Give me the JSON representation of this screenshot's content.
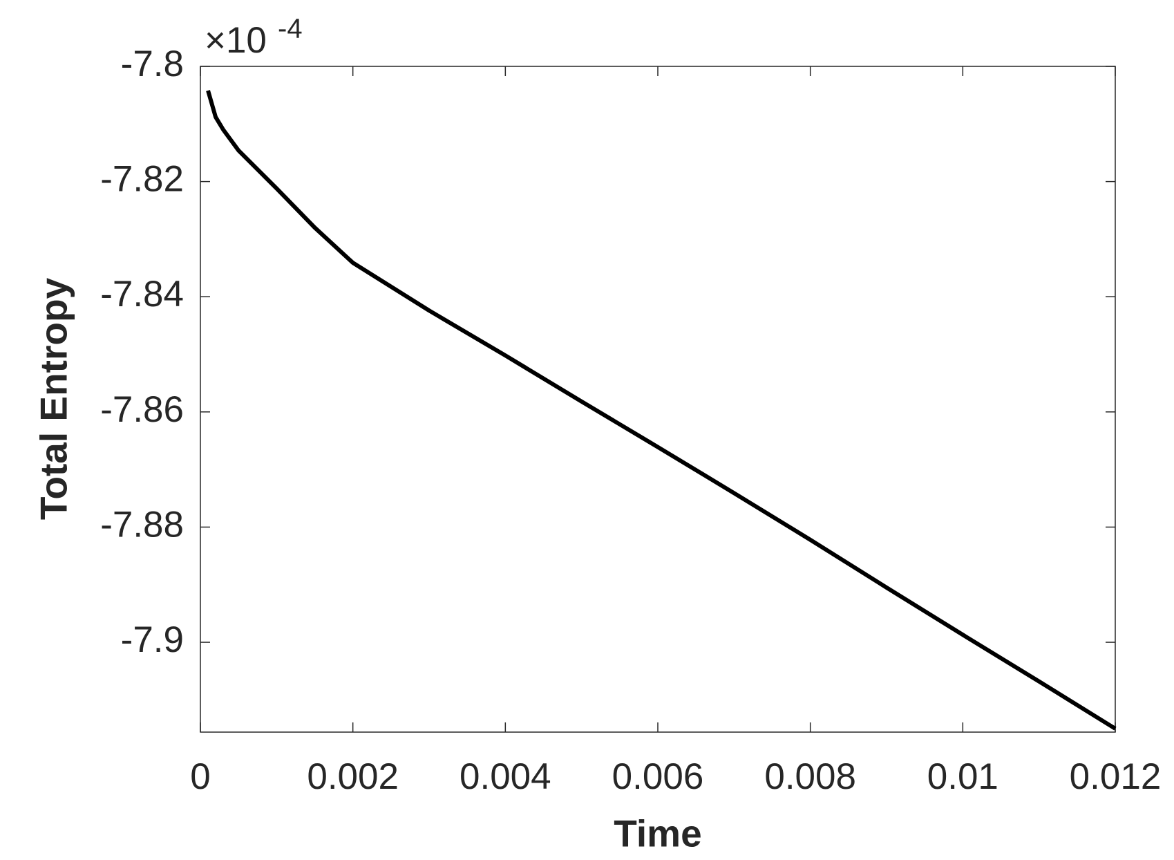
{
  "chart_data": {
    "type": "line",
    "xlabel": "Time",
    "ylabel": "Total Entropy",
    "y_multiplier": "×10",
    "y_multiplier_exponent": "-4",
    "x": [
      0.0001,
      0.0002,
      0.0003,
      0.0005,
      0.001,
      0.0015,
      0.002,
      0.003,
      0.004,
      0.005,
      0.006,
      0.007,
      0.008,
      0.009,
      0.01,
      0.011,
      0.012
    ],
    "series": [
      {
        "color": "#000000",
        "values": [
          -7.8042,
          -7.8088,
          -7.811,
          -7.8146,
          -7.8212,
          -7.828,
          -7.8341,
          -7.8424,
          -7.8502,
          -7.8582,
          -7.8661,
          -7.8741,
          -7.8822,
          -7.8905,
          -7.8987,
          -7.9068,
          -7.915
        ]
      }
    ],
    "xlim": [
      0,
      0.012
    ],
    "xticks": [
      0,
      0.002,
      0.004,
      0.006,
      0.008,
      0.01,
      0.012
    ],
    "ylim": [
      -7.9156,
      -7.8
    ],
    "yticks": [
      -7.9,
      -7.88,
      -7.86,
      -7.84,
      -7.82,
      -7.8
    ]
  }
}
